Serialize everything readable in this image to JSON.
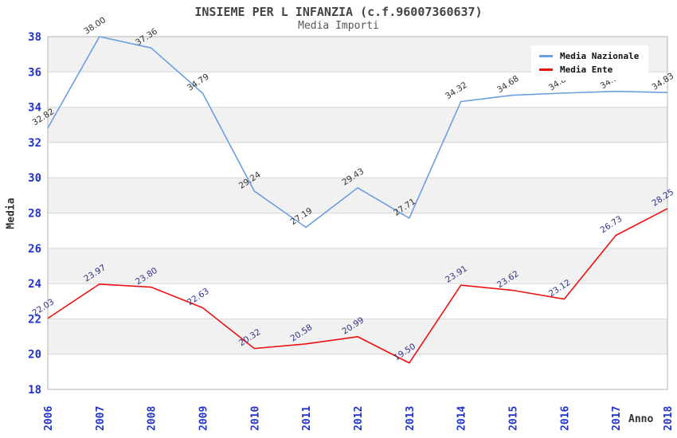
{
  "header": {
    "title": "INSIEME PER L INFANZIA (c.f.96007360637)",
    "subtitle": "Media Importi"
  },
  "legend": {
    "items": [
      {
        "label": "Media Nazionale",
        "color": "#6b9fe0"
      },
      {
        "label": "Media Ente",
        "color": "#ee1111"
      }
    ]
  },
  "chart_data": {
    "type": "line",
    "title": "INSIEME PER L INFANZIA (c.f.96007360637)",
    "subtitle": "Media Importi",
    "xlabel": "Anno",
    "ylabel": "Media",
    "x": [
      "2006",
      "2007",
      "2008",
      "2009",
      "2010",
      "2011",
      "2012",
      "2013",
      "2014",
      "2015",
      "2016",
      "2017",
      "2018"
    ],
    "series": [
      {
        "name": "Media Nazionale",
        "color": "#6b9fe0",
        "label_color": "#333333",
        "values": [
          32.82,
          38.0,
          37.36,
          34.79,
          29.24,
          27.19,
          29.43,
          27.71,
          34.32,
          34.68,
          34.8,
          34.9,
          34.83
        ]
      },
      {
        "name": "Media Ente",
        "color": "#ee1111",
        "label_color": "#333388",
        "values": [
          22.03,
          23.97,
          23.8,
          22.63,
          20.32,
          20.58,
          20.99,
          19.5,
          23.91,
          23.62,
          23.12,
          26.73,
          28.25
        ]
      }
    ],
    "ylim": [
      18,
      38
    ],
    "ytick_step": 2,
    "grid": true,
    "legend_position": "top-right",
    "tick_label_color": "#2233cc",
    "grid_color": "#d8d8d8",
    "frame_color": "#b5b5b5",
    "band_colors": [
      "#f1f1f1",
      "#ffffff"
    ]
  }
}
